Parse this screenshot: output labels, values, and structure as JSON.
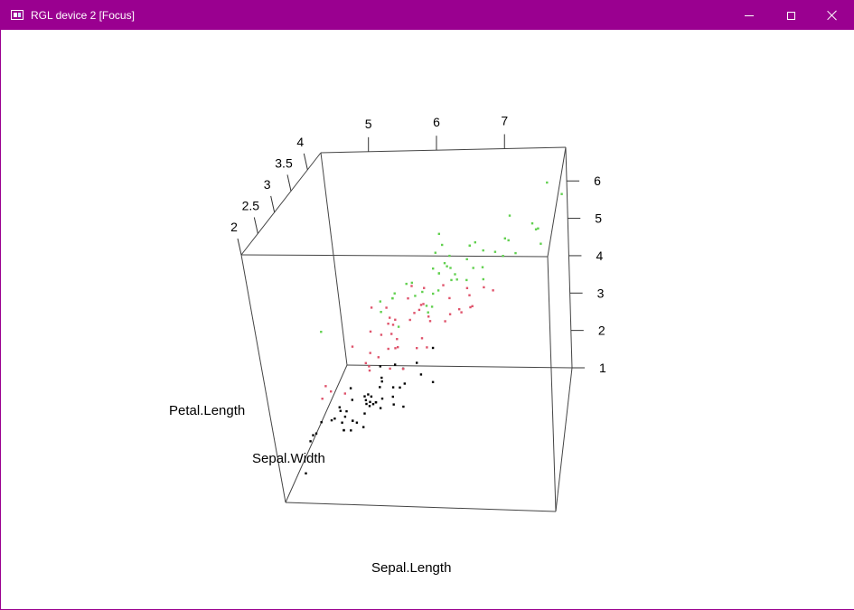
{
  "window": {
    "title": "RGL device 2 [Focus]",
    "titlebar_color": "#9a0090",
    "controls": [
      "minimize-icon",
      "maximize-icon",
      "close-icon"
    ]
  },
  "chart_data": {
    "type": "scatter",
    "projection": "3d",
    "x": {
      "label": "Sepal.Length",
      "ticks": [
        "5",
        "6",
        "7"
      ],
      "range": [
        4.3,
        7.9
      ]
    },
    "y": {
      "label": "Sepal.Width",
      "ticks": [
        "2",
        "2.5",
        "3",
        "3.5",
        "4"
      ],
      "range": [
        2.0,
        4.4
      ]
    },
    "z": {
      "label": "Petal.Length",
      "ticks": [
        "1",
        "2",
        "3",
        "4",
        "5",
        "6"
      ],
      "range": [
        1.0,
        6.9
      ]
    },
    "colors": [
      "#000000",
      "#df536b",
      "#61d04f"
    ],
    "series": [
      {
        "color": "#000000",
        "points": [
          [
            5.1,
            3.5,
            1.4
          ],
          [
            4.9,
            3.0,
            1.4
          ],
          [
            4.7,
            3.2,
            1.3
          ],
          [
            4.6,
            3.1,
            1.5
          ],
          [
            5.0,
            3.6,
            1.4
          ],
          [
            5.4,
            3.9,
            1.7
          ],
          [
            4.6,
            3.4,
            1.4
          ],
          [
            5.0,
            3.4,
            1.5
          ],
          [
            4.4,
            2.9,
            1.4
          ],
          [
            4.9,
            3.1,
            1.5
          ],
          [
            5.4,
            3.7,
            1.5
          ],
          [
            4.8,
            3.4,
            1.6
          ],
          [
            4.8,
            3.0,
            1.4
          ],
          [
            4.3,
            3.0,
            1.1
          ],
          [
            5.8,
            4.0,
            1.2
          ],
          [
            5.7,
            4.4,
            1.5
          ],
          [
            5.4,
            3.9,
            1.3
          ],
          [
            5.1,
            3.5,
            1.4
          ],
          [
            5.7,
            3.8,
            1.7
          ],
          [
            5.1,
            3.8,
            1.5
          ],
          [
            5.4,
            3.4,
            1.7
          ],
          [
            5.1,
            3.7,
            1.5
          ],
          [
            4.6,
            3.6,
            1.0
          ],
          [
            5.1,
            3.3,
            1.7
          ],
          [
            4.8,
            3.4,
            1.9
          ],
          [
            5.0,
            3.0,
            1.6
          ],
          [
            5.0,
            3.4,
            1.6
          ],
          [
            5.2,
            3.5,
            1.5
          ],
          [
            5.2,
            3.4,
            1.4
          ],
          [
            4.7,
            3.2,
            1.6
          ],
          [
            4.8,
            3.1,
            1.6
          ],
          [
            5.4,
            3.4,
            1.5
          ],
          [
            5.2,
            4.1,
            1.5
          ],
          [
            5.5,
            4.2,
            1.4
          ],
          [
            4.9,
            3.1,
            1.5
          ],
          [
            5.0,
            3.2,
            1.2
          ],
          [
            5.5,
            3.5,
            1.3
          ],
          [
            4.9,
            3.6,
            1.4
          ],
          [
            4.4,
            3.0,
            1.3
          ],
          [
            5.1,
            3.4,
            1.5
          ],
          [
            5.0,
            3.5,
            1.3
          ],
          [
            4.5,
            2.3,
            1.3
          ],
          [
            4.4,
            3.2,
            1.3
          ],
          [
            5.0,
            3.5,
            1.6
          ],
          [
            5.1,
            3.8,
            1.9
          ],
          [
            4.8,
            3.0,
            1.4
          ],
          [
            5.1,
            3.8,
            1.6
          ],
          [
            4.6,
            3.2,
            1.4
          ],
          [
            5.3,
            3.7,
            1.5
          ],
          [
            5.0,
            3.3,
            1.4
          ]
        ]
      },
      {
        "color": "#df536b",
        "points": [
          [
            7.0,
            3.2,
            4.7
          ],
          [
            6.4,
            3.2,
            4.5
          ],
          [
            6.9,
            3.1,
            4.9
          ],
          [
            5.5,
            2.3,
            4.0
          ],
          [
            6.5,
            2.8,
            4.6
          ],
          [
            5.7,
            2.8,
            4.5
          ],
          [
            6.3,
            3.3,
            4.7
          ],
          [
            4.9,
            2.4,
            3.3
          ],
          [
            6.6,
            2.9,
            4.6
          ],
          [
            5.2,
            2.7,
            3.9
          ],
          [
            5.0,
            2.0,
            3.5
          ],
          [
            5.9,
            3.0,
            4.2
          ],
          [
            6.0,
            2.2,
            4.0
          ],
          [
            6.1,
            2.9,
            4.7
          ],
          [
            5.6,
            2.9,
            3.6
          ],
          [
            6.7,
            3.1,
            4.4
          ],
          [
            5.6,
            3.0,
            4.5
          ],
          [
            5.8,
            2.7,
            4.1
          ],
          [
            6.2,
            2.2,
            4.5
          ],
          [
            5.6,
            2.5,
            3.9
          ],
          [
            5.9,
            3.2,
            4.8
          ],
          [
            6.1,
            2.8,
            4.0
          ],
          [
            6.3,
            2.5,
            4.9
          ],
          [
            6.1,
            2.8,
            4.7
          ],
          [
            6.4,
            2.9,
            4.3
          ],
          [
            6.6,
            3.0,
            4.4
          ],
          [
            6.8,
            2.8,
            4.8
          ],
          [
            6.7,
            3.0,
            5.0
          ],
          [
            6.0,
            2.9,
            4.5
          ],
          [
            5.7,
            2.6,
            3.5
          ],
          [
            5.5,
            2.4,
            3.8
          ],
          [
            5.5,
            2.4,
            3.7
          ],
          [
            5.8,
            2.7,
            3.9
          ],
          [
            6.0,
            2.7,
            5.1
          ],
          [
            5.4,
            3.0,
            4.5
          ],
          [
            6.0,
            3.4,
            4.5
          ],
          [
            6.7,
            3.1,
            4.7
          ],
          [
            6.3,
            2.3,
            4.4
          ],
          [
            5.6,
            3.0,
            4.1
          ],
          [
            5.5,
            2.5,
            4.0
          ],
          [
            5.5,
            2.6,
            4.4
          ],
          [
            6.1,
            3.0,
            4.6
          ],
          [
            5.8,
            2.6,
            4.0
          ],
          [
            5.0,
            2.3,
            3.3
          ],
          [
            5.6,
            2.7,
            4.2
          ],
          [
            5.7,
            3.0,
            4.2
          ],
          [
            5.7,
            2.9,
            4.2
          ],
          [
            6.2,
            2.9,
            4.3
          ],
          [
            5.1,
            2.5,
            3.0
          ],
          [
            5.7,
            2.8,
            4.1
          ]
        ]
      },
      {
        "color": "#61d04f",
        "points": [
          [
            6.3,
            3.3,
            6.0
          ],
          [
            5.8,
            2.7,
            5.1
          ],
          [
            7.1,
            3.0,
            5.9
          ],
          [
            6.3,
            2.9,
            5.6
          ],
          [
            6.5,
            3.0,
            5.8
          ],
          [
            7.6,
            3.0,
            6.6
          ],
          [
            4.9,
            2.5,
            4.5
          ],
          [
            7.3,
            2.9,
            6.3
          ],
          [
            6.7,
            2.5,
            5.8
          ],
          [
            7.2,
            3.6,
            6.1
          ],
          [
            6.5,
            3.2,
            5.1
          ],
          [
            6.4,
            2.7,
            5.3
          ],
          [
            6.8,
            3.0,
            5.5
          ],
          [
            5.7,
            2.5,
            5.0
          ],
          [
            5.8,
            2.8,
            5.1
          ],
          [
            6.4,
            3.2,
            5.3
          ],
          [
            6.5,
            3.0,
            5.5
          ],
          [
            7.7,
            3.8,
            6.7
          ],
          [
            7.7,
            2.6,
            6.9
          ],
          [
            6.0,
            2.2,
            5.0
          ],
          [
            6.9,
            3.2,
            5.7
          ],
          [
            5.6,
            2.8,
            4.9
          ],
          [
            7.7,
            2.8,
            6.7
          ],
          [
            6.3,
            2.7,
            4.9
          ],
          [
            6.7,
            3.3,
            5.7
          ],
          [
            7.2,
            3.2,
            6.0
          ],
          [
            6.2,
            2.8,
            4.8
          ],
          [
            6.1,
            3.0,
            4.9
          ],
          [
            6.4,
            2.8,
            5.6
          ],
          [
            7.2,
            3.0,
            5.8
          ],
          [
            7.4,
            2.8,
            6.1
          ],
          [
            7.9,
            3.8,
            6.4
          ],
          [
            6.4,
            2.8,
            5.6
          ],
          [
            6.3,
            2.8,
            5.1
          ],
          [
            6.1,
            2.6,
            5.6
          ],
          [
            7.7,
            3.0,
            6.1
          ],
          [
            6.3,
            3.4,
            5.6
          ],
          [
            6.4,
            3.1,
            5.5
          ],
          [
            6.0,
            3.0,
            4.8
          ],
          [
            6.9,
            3.1,
            5.4
          ],
          [
            6.7,
            3.1,
            5.6
          ],
          [
            6.9,
            3.1,
            5.1
          ],
          [
            5.8,
            2.7,
            5.1
          ],
          [
            6.8,
            3.2,
            5.9
          ],
          [
            6.7,
            3.3,
            5.7
          ],
          [
            6.7,
            3.0,
            5.2
          ],
          [
            6.3,
            2.5,
            5.0
          ],
          [
            6.5,
            3.0,
            5.2
          ],
          [
            6.2,
            3.4,
            5.4
          ],
          [
            5.9,
            3.0,
            5.1
          ]
        ]
      }
    ]
  }
}
